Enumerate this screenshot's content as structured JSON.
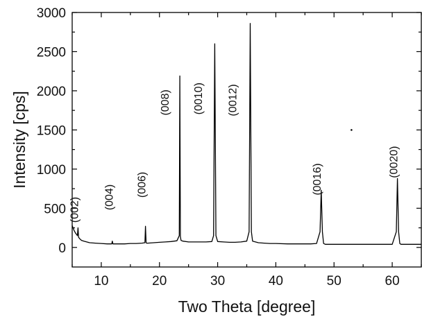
{
  "chart_data": {
    "type": "line",
    "title": "",
    "xlabel": "Two Theta [degree]",
    "ylabel": "Intensity [cps]",
    "xlim": [
      5,
      65
    ],
    "ylim": [
      -250,
      3000
    ],
    "xticks": [
      10,
      20,
      30,
      40,
      50,
      60
    ],
    "yticks": [
      0,
      500,
      1000,
      1500,
      2000,
      2500,
      3000
    ],
    "grid": false,
    "series": [
      {
        "x": [
          5.0,
          5.3,
          5.6,
          5.9,
          6.0,
          6.1,
          6.3,
          6.6,
          7.0,
          7.5,
          8.0,
          9.0,
          10.0,
          11.0,
          11.8,
          11.9,
          12.0,
          12.1,
          13.0,
          14.0,
          15.0,
          16.0,
          17.0,
          17.5,
          17.6,
          17.7,
          17.8,
          18.0,
          19.0,
          20.0,
          21.0,
          22.0,
          23.0,
          23.4,
          23.5,
          23.6,
          23.7,
          24.0,
          25.0,
          26.0,
          27.0,
          28.0,
          29.0,
          29.3,
          29.5,
          29.7,
          30.0,
          31.0,
          32.0,
          33.0,
          34.0,
          35.0,
          35.4,
          35.6,
          35.8,
          36.0,
          37.0,
          38.0,
          39.0,
          40.0,
          42.0,
          44.0,
          46.0,
          47.0,
          47.6,
          47.8,
          48.0,
          48.2,
          48.5,
          50.0,
          52.0,
          54.0,
          56.0,
          58.0,
          60.0,
          60.7,
          60.9,
          61.1,
          61.3,
          61.5,
          62.0,
          63.0,
          64.0,
          65.0
        ],
        "y": [
          280,
          220,
          180,
          150,
          250,
          130,
          110,
          90,
          80,
          70,
          60,
          55,
          50,
          45,
          45,
          80,
          45,
          45,
          45,
          45,
          50,
          50,
          55,
          60,
          270,
          60,
          55,
          55,
          60,
          65,
          70,
          75,
          85,
          150,
          2190,
          140,
          90,
          80,
          70,
          70,
          70,
          70,
          75,
          150,
          2600,
          150,
          75,
          70,
          65,
          65,
          70,
          80,
          200,
          2860,
          200,
          80,
          60,
          55,
          50,
          50,
          45,
          45,
          45,
          50,
          200,
          730,
          200,
          50,
          40,
          40,
          40,
          40,
          40,
          40,
          40,
          200,
          880,
          200,
          50,
          40,
          40,
          40,
          40,
          40
        ]
      }
    ],
    "annotations": [
      {
        "text": "(002)",
        "x": 6.0,
        "y": 480
      },
      {
        "text": "(004)",
        "x": 12.0,
        "y": 640
      },
      {
        "text": "(006)",
        "x": 17.6,
        "y": 800
      },
      {
        "text": "(008)",
        "x": 21.6,
        "y": 1850
      },
      {
        "text": "(0010)",
        "x": 27.3,
        "y": 1900
      },
      {
        "text": "(0012)",
        "x": 33.2,
        "y": 1880
      },
      {
        "text": "(0016)",
        "x": 47.7,
        "y": 870
      },
      {
        "text": "(0020)",
        "x": 60.9,
        "y": 1090
      }
    ]
  }
}
